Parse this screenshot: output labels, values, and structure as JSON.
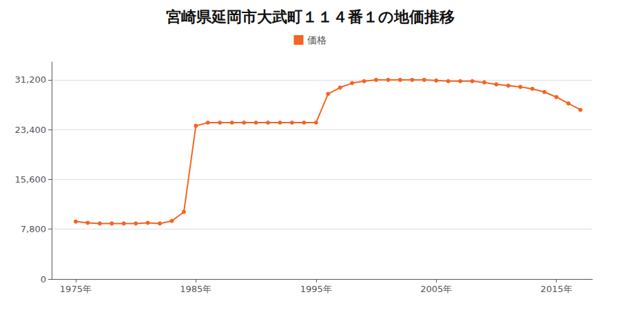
{
  "chart_data": {
    "type": "line",
    "title": "宮崎県延岡市大武町１１４番１の地価推移",
    "x": [
      1975,
      1976,
      1977,
      1978,
      1979,
      1980,
      1981,
      1982,
      1983,
      1984,
      1985,
      1986,
      1987,
      1988,
      1989,
      1990,
      1991,
      1992,
      1993,
      1994,
      1995,
      1996,
      1997,
      1998,
      1999,
      2000,
      2001,
      2002,
      2003,
      2004,
      2005,
      2006,
      2007,
      2008,
      2009,
      2010,
      2011,
      2012,
      2013,
      2014,
      2015,
      2016,
      2017
    ],
    "series": [
      {
        "name": "価格",
        "color": "#F26522",
        "marker": "circle",
        "values": [
          9000,
          8800,
          8700,
          8700,
          8700,
          8700,
          8800,
          8700,
          9100,
          10500,
          24000,
          24500,
          24500,
          24500,
          24500,
          24500,
          24500,
          24500,
          24500,
          24500,
          24500,
          29000,
          30000,
          30700,
          31000,
          31200,
          31200,
          31200,
          31200,
          31200,
          31100,
          31000,
          31000,
          31000,
          30800,
          30500,
          30300,
          30100,
          29800,
          29300,
          28500,
          27500,
          26500
        ]
      }
    ],
    "xlim": [
      1973,
      2018
    ],
    "xticks": [
      {
        "value": 1975,
        "label": "1975年"
      },
      {
        "value": 1985,
        "label": "1985年"
      },
      {
        "value": 1995,
        "label": "1995年"
      },
      {
        "value": 2005,
        "label": "2005年"
      },
      {
        "value": 2015,
        "label": "2015年"
      }
    ],
    "ylim": [
      0,
      34000
    ],
    "yticks": [
      0,
      {
        "value": 7800,
        "label": "7,800"
      },
      {
        "value": 15600,
        "label": "15,600"
      },
      {
        "value": 23400,
        "label": "23,400"
      },
      {
        "value": 31200,
        "label": "31,200"
      }
    ],
    "grid": true,
    "legend": "top"
  }
}
